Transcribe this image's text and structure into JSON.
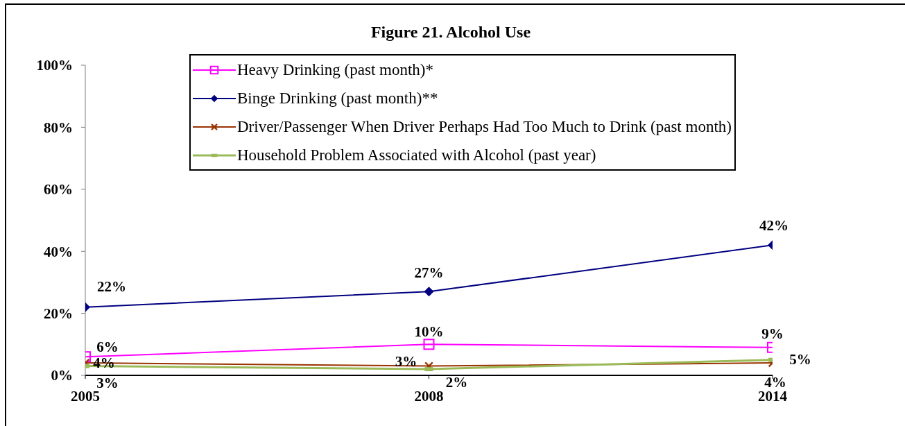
{
  "chart_data": {
    "type": "line",
    "title": "Figure 21. Alcohol Use",
    "categories": [
      "2005",
      "2008",
      "2014"
    ],
    "series": [
      {
        "name": "Heavy Drinking (past month)*",
        "color": "#ff00ff",
        "marker": "square",
        "values": [
          6,
          10,
          9
        ],
        "value_labels": [
          "6%",
          "10%",
          "9%"
        ]
      },
      {
        "name": "Binge Drinking (past month)**",
        "color": "#000080",
        "marker": "diamond",
        "values": [
          22,
          27,
          42
        ],
        "value_labels": [
          "22%",
          "27%",
          "42%"
        ]
      },
      {
        "name": "Driver/Passenger When Driver Perhaps Had Too Much to Drink (past month)",
        "color": "#993300",
        "marker": "cross",
        "values": [
          4,
          3,
          4
        ],
        "value_labels": [
          "4%",
          "3%",
          "4%"
        ]
      },
      {
        "name": "Household Problem Associated with Alcohol (past year)",
        "color": "#9bbb59",
        "marker": "square",
        "values": [
          3,
          2,
          5
        ],
        "value_labels": [
          "3%",
          "2%",
          "5%"
        ]
      }
    ],
    "ylim": [
      0,
      100
    ],
    "yticks": [
      {
        "value": 0,
        "label": "0%"
      },
      {
        "value": 20,
        "label": "20%"
      },
      {
        "value": 40,
        "label": "40%"
      },
      {
        "value": 60,
        "label": "60%"
      },
      {
        "value": 80,
        "label": "80%"
      },
      {
        "value": 100,
        "label": "100%"
      }
    ],
    "legend": "top"
  }
}
